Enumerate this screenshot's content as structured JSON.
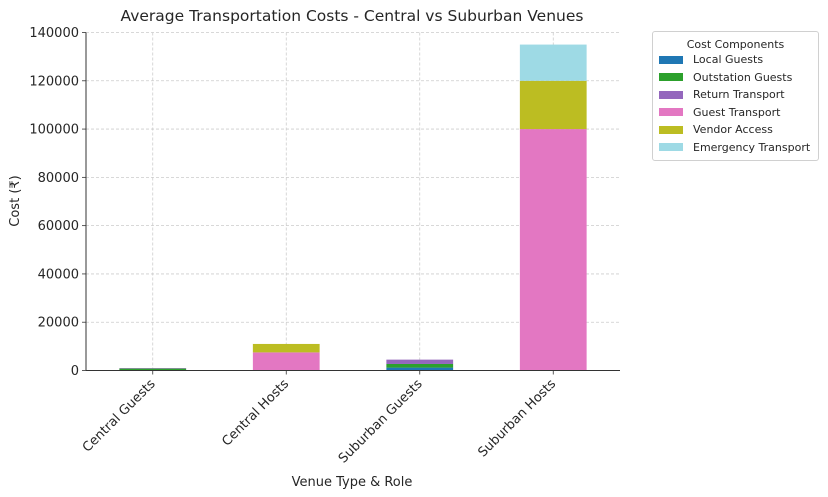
{
  "chart_data": {
    "type": "bar",
    "stacked": true,
    "title": "Average Transportation Costs - Central vs Suburban Venues",
    "xlabel": "Venue Type & Role",
    "ylabel": "Cost (₹)",
    "ylim": [
      0,
      140000
    ],
    "yticks": [
      0,
      20000,
      40000,
      60000,
      80000,
      100000,
      120000,
      140000
    ],
    "ytick_labels": [
      "0",
      "20000",
      "40000",
      "60000",
      "80000",
      "100000",
      "120000",
      "140000"
    ],
    "grid": true,
    "categories": [
      "Central Guests",
      "Central Hosts",
      "Suburban Guests",
      "Suburban Hosts"
    ],
    "legend": {
      "title": "Cost Components",
      "placement": "outside-top-right"
    },
    "series": [
      {
        "name": "Local Guests",
        "color": "#1f77b4",
        "values": [
          0,
          0,
          1200,
          0
        ]
      },
      {
        "name": "Outstation Guests",
        "color": "#2ca02c",
        "values": [
          800,
          0,
          1500,
          0
        ]
      },
      {
        "name": "Return Transport",
        "color": "#9467bd",
        "values": [
          200,
          0,
          1800,
          0
        ]
      },
      {
        "name": "Guest Transport",
        "color": "#e377c2",
        "values": [
          0,
          7500,
          0,
          100000
        ]
      },
      {
        "name": "Vendor Access",
        "color": "#bcbd22",
        "values": [
          0,
          3500,
          0,
          20000
        ]
      },
      {
        "name": "Emergency Transport",
        "color": "#9edae5",
        "values": [
          0,
          0,
          0,
          15000
        ]
      }
    ]
  }
}
